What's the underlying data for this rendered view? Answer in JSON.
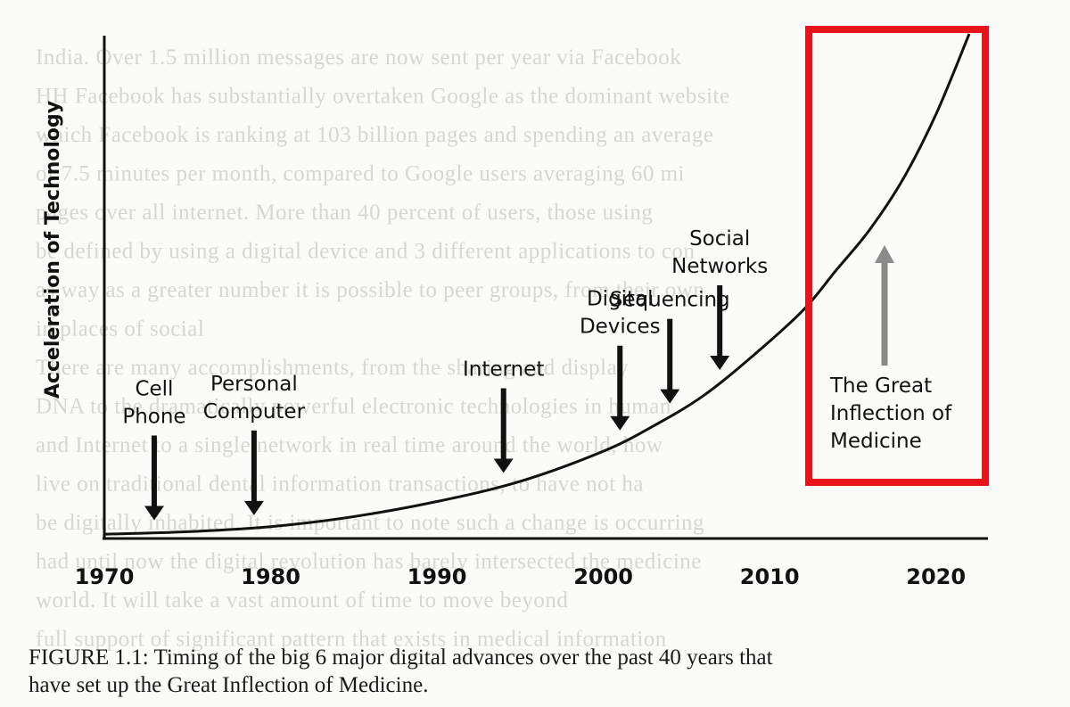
{
  "chart_data": {
    "type": "line",
    "ylabel": "Acceleration of Technology",
    "xlabel": "",
    "x_ticks": [
      "1970",
      "1980",
      "1990",
      "2000",
      "2010",
      "2020"
    ],
    "xlim": [
      1970,
      2023
    ],
    "curve": {
      "x": [
        1970,
        1975,
        1980,
        1985,
        1990,
        1995,
        2000,
        2003,
        2006,
        2009,
        2012,
        2014,
        2016,
        2018,
        2020,
        2022
      ],
      "y": [
        0.5,
        1,
        2,
        4,
        7,
        11,
        17,
        22,
        28,
        36,
        45,
        53,
        61,
        71,
        84,
        100
      ]
    },
    "events": [
      {
        "year": 1973,
        "label_lines": [
          "Cell",
          "Phone"
        ]
      },
      {
        "year": 1979,
        "label_lines": [
          "Personal",
          "Computer"
        ]
      },
      {
        "year": 1994,
        "label_lines": [
          "Internet"
        ]
      },
      {
        "year": 2001,
        "label_lines": [
          "Digital",
          "Devices"
        ]
      },
      {
        "year": 2004,
        "label_lines": [
          "Sequencing"
        ]
      },
      {
        "year": 2007,
        "label_lines": [
          "Social",
          "Networks"
        ]
      }
    ],
    "highlight": {
      "label_lines": [
        "The Great",
        "Inflection of",
        "Medicine"
      ],
      "border_color": "#e8141c",
      "arrow_color": "#8a8a8a"
    }
  },
  "caption": {
    "line1": "FIGURE 1.1: Timing of the big 6 major digital advances over the past 40 years that",
    "line2": "have set up the Great Inflection of Medicine."
  },
  "background_text": [
    "India. Over 1.5 million messages are now sent per year via Facebook",
    "HH Facebook has substantially overtaken Google as the dominant website",
    "which Facebook is ranking at 103 billion pages and spending an average",
    "of 7.5 minutes per month, compared to Google users averaging 60 mi",
    "pages over all internet. More than 40 percent of users, those using",
    "be defined by using a digital device and 3 different applications to con",
    "as way as a greater number it is possible to peer groups, from their own",
    "in places of social",
    "There are many accomplishments, from the sharing and display",
    "DNA to the dramatically powerful electronic technologies in human",
    "and Internet to a single network in real time around the world, how",
    "live on traditional dental information transactions, to have not ha",
    "be digitally inhabited. It is important to note such a change is occurring",
    "had until now the digital revolution has barely intersected the medicine",
    "world. It will take a vast amount of time to move beyond",
    "full support of significant pattern that exists in medical information"
  ]
}
